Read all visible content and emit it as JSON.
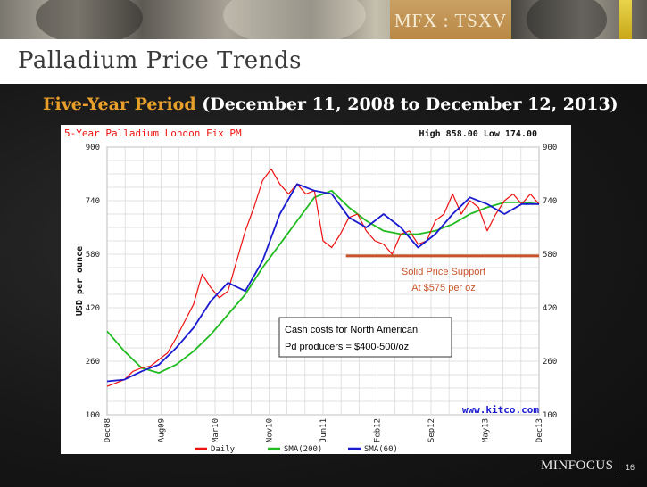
{
  "header": {
    "ticker_label": "MFX : TSXV",
    "slide_title": "Palladium Price Trends",
    "subtitle_accent": "Five-Year Period",
    "subtitle_rest": "(December 11, 2008 to December 12, 2013)"
  },
  "footer": {
    "logo_text": "MINFOCUS",
    "page_number": "16"
  },
  "colors": {
    "daily": "#ee1111",
    "sma200": "#22bb22",
    "sma60": "#1a1ad0",
    "support_line": "#c8532a",
    "accent": "#e8a02a"
  },
  "chart_data": {
    "type": "line",
    "title": "5-Year Palladium London Fix PM",
    "high_low": "High 858.00 Low 174.00",
    "ylabel": "USD per ounce",
    "ylim": [
      100,
      900
    ],
    "yticks": [
      100,
      260,
      420,
      580,
      740,
      900
    ],
    "xticks": [
      "Dec08",
      "Aug09",
      "Mar10",
      "Nov10",
      "Jun11",
      "Feb12",
      "Sep12",
      "May13",
      "Dec13"
    ],
    "grid": true,
    "legend": [
      "Daily",
      "SMA(200)",
      "SMA(60)"
    ],
    "watermark": "www.kitco.com",
    "series": [
      {
        "name": "Daily",
        "x": [
          0,
          0.02,
          0.04,
          0.06,
          0.08,
          0.1,
          0.12,
          0.14,
          0.16,
          0.18,
          0.2,
          0.22,
          0.24,
          0.26,
          0.28,
          0.3,
          0.32,
          0.34,
          0.36,
          0.38,
          0.4,
          0.42,
          0.44,
          0.46,
          0.48,
          0.5,
          0.52,
          0.54,
          0.56,
          0.58,
          0.6,
          0.62,
          0.64,
          0.66,
          0.68,
          0.7,
          0.72,
          0.74,
          0.76,
          0.78,
          0.8,
          0.82,
          0.84,
          0.86,
          0.88,
          0.9,
          0.92,
          0.94,
          0.96,
          0.98,
          1.0
        ],
        "values": [
          185,
          195,
          205,
          230,
          240,
          245,
          265,
          285,
          330,
          380,
          430,
          520,
          480,
          450,
          470,
          560,
          650,
          720,
          800,
          835,
          790,
          760,
          790,
          760,
          770,
          620,
          600,
          640,
          690,
          700,
          650,
          620,
          610,
          580,
          640,
          650,
          610,
          620,
          680,
          700,
          760,
          700,
          740,
          720,
          650,
          700,
          740,
          760,
          730,
          760,
          730
        ]
      },
      {
        "name": "SMA(200)",
        "x": [
          0,
          0.04,
          0.08,
          0.12,
          0.16,
          0.2,
          0.24,
          0.28,
          0.32,
          0.36,
          0.4,
          0.44,
          0.48,
          0.52,
          0.56,
          0.6,
          0.64,
          0.68,
          0.72,
          0.76,
          0.8,
          0.84,
          0.88,
          0.92,
          0.96,
          1.0
        ],
        "values": [
          350,
          290,
          240,
          225,
          250,
          290,
          340,
          400,
          460,
          540,
          610,
          680,
          750,
          770,
          720,
          680,
          650,
          640,
          640,
          650,
          670,
          700,
          720,
          735,
          735,
          730
        ]
      },
      {
        "name": "SMA(60)",
        "x": [
          0,
          0.04,
          0.08,
          0.12,
          0.16,
          0.2,
          0.24,
          0.28,
          0.32,
          0.36,
          0.4,
          0.44,
          0.48,
          0.52,
          0.56,
          0.6,
          0.64,
          0.68,
          0.72,
          0.76,
          0.8,
          0.84,
          0.88,
          0.92,
          0.96,
          1.0
        ],
        "values": [
          200,
          205,
          230,
          250,
          300,
          360,
          440,
          495,
          470,
          560,
          700,
          790,
          770,
          760,
          690,
          660,
          700,
          660,
          600,
          640,
          700,
          750,
          730,
          700,
          730,
          730
        ]
      }
    ],
    "annotations": {
      "support_value": 575,
      "support_line1": "Solid Price Support",
      "support_line2": "At $575 per oz",
      "cost_line1": "Cash costs for North American",
      "cost_line2": "Pd producers = $400-500/oz"
    }
  }
}
